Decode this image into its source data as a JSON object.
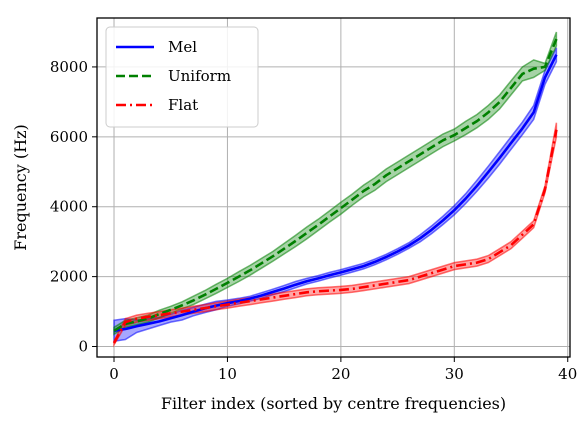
{
  "chart_data": {
    "type": "line",
    "xlabel": "Filter index (sorted by centre frequencies)",
    "ylabel": "Frequency (Hz)",
    "xlim": [
      -1.5,
      40.2
    ],
    "ylim": [
      -300,
      9400
    ],
    "xticks": [
      0,
      10,
      20,
      30,
      40
    ],
    "yticks": [
      0,
      2000,
      4000,
      6000,
      8000
    ],
    "grid": true,
    "legend_position": "top-left",
    "x": [
      0,
      1,
      2,
      3,
      4,
      5,
      6,
      7,
      8,
      9,
      10,
      11,
      12,
      13,
      14,
      15,
      16,
      17,
      18,
      19,
      20,
      21,
      22,
      23,
      24,
      25,
      26,
      27,
      28,
      29,
      30,
      31,
      32,
      33,
      34,
      35,
      36,
      37,
      38,
      39
    ],
    "series": [
      {
        "name": "Mel",
        "color": "#0000ff",
        "style": "solid",
        "mean": [
          450,
          500,
          580,
          650,
          720,
          810,
          900,
          1000,
          1090,
          1170,
          1240,
          1300,
          1370,
          1460,
          1560,
          1660,
          1770,
          1870,
          1950,
          2040,
          2120,
          2210,
          2300,
          2420,
          2560,
          2720,
          2890,
          3100,
          3340,
          3610,
          3900,
          4230,
          4600,
          4990,
          5400,
          5820,
          6240,
          6700,
          7700,
          8350
        ],
        "lower": [
          150,
          200,
          400,
          500,
          600,
          700,
          760,
          880,
          970,
          1050,
          1150,
          1220,
          1300,
          1380,
          1480,
          1570,
          1680,
          1790,
          1870,
          1960,
          2040,
          2130,
          2220,
          2340,
          2480,
          2640,
          2810,
          3000,
          3230,
          3490,
          3770,
          4090,
          4440,
          4820,
          5220,
          5640,
          6060,
          6500,
          7500,
          8150
        ],
        "upper": [
          750,
          800,
          760,
          800,
          840,
          920,
          1040,
          1120,
          1210,
          1290,
          1330,
          1380,
          1440,
          1540,
          1640,
          1750,
          1860,
          1950,
          2030,
          2120,
          2200,
          2290,
          2380,
          2500,
          2640,
          2800,
          2970,
          3200,
          3450,
          3730,
          4030,
          4370,
          4760,
          5160,
          5580,
          6000,
          6420,
          6900,
          7900,
          8550
        ]
      },
      {
        "name": "Uniform",
        "color": "#008000",
        "style": "dashed",
        "mean": [
          450,
          650,
          720,
          800,
          930,
          1050,
          1180,
          1320,
          1480,
          1650,
          1820,
          2000,
          2180,
          2380,
          2580,
          2800,
          3020,
          3250,
          3480,
          3720,
          3960,
          4200,
          4450,
          4650,
          4900,
          5100,
          5300,
          5500,
          5700,
          5900,
          6050,
          6250,
          6450,
          6700,
          7000,
          7400,
          7800,
          7950,
          8000,
          8800
        ],
        "lower": [
          350,
          550,
          620,
          700,
          820,
          950,
          1080,
          1200,
          1360,
          1520,
          1690,
          1860,
          2040,
          2240,
          2440,
          2650,
          2860,
          3080,
          3320,
          3560,
          3790,
          4040,
          4280,
          4470,
          4720,
          4920,
          5120,
          5320,
          5520,
          5720,
          5880,
          6060,
          6260,
          6500,
          6800,
          7200,
          7600,
          7700,
          7900,
          8600
        ],
        "upper": [
          550,
          750,
          820,
          900,
          1040,
          1150,
          1280,
          1440,
          1600,
          1780,
          1950,
          2140,
          2320,
          2520,
          2720,
          2950,
          3180,
          3420,
          3640,
          3880,
          4130,
          4360,
          4620,
          4830,
          5080,
          5280,
          5480,
          5680,
          5880,
          6080,
          6220,
          6440,
          6640,
          6900,
          7200,
          7600,
          8000,
          8200,
          8100,
          9000
        ]
      },
      {
        "name": "Flat",
        "color": "#ff0000",
        "style": "dashdot",
        "mean": [
          100,
          700,
          800,
          850,
          900,
          950,
          1000,
          1050,
          1100,
          1150,
          1200,
          1250,
          1300,
          1350,
          1400,
          1450,
          1500,
          1550,
          1580,
          1600,
          1620,
          1650,
          1700,
          1750,
          1800,
          1850,
          1900,
          2000,
          2100,
          2200,
          2300,
          2350,
          2400,
          2500,
          2700,
          2900,
          3200,
          3500,
          4500,
          6200
        ],
        "lower": [
          50,
          600,
          700,
          750,
          800,
          850,
          900,
          950,
          1000,
          1050,
          1100,
          1150,
          1200,
          1250,
          1300,
          1350,
          1400,
          1450,
          1480,
          1500,
          1520,
          1550,
          1600,
          1650,
          1700,
          1750,
          1800,
          1900,
          2000,
          2100,
          2200,
          2250,
          2300,
          2400,
          2600,
          2800,
          3100,
          3400,
          4400,
          6000
        ],
        "upper": [
          150,
          800,
          900,
          950,
          1000,
          1050,
          1100,
          1150,
          1200,
          1250,
          1300,
          1350,
          1400,
          1450,
          1500,
          1550,
          1600,
          1650,
          1680,
          1700,
          1720,
          1750,
          1800,
          1850,
          1900,
          1950,
          2000,
          2100,
          2200,
          2300,
          2400,
          2450,
          2500,
          2600,
          2800,
          3000,
          3300,
          3600,
          4600,
          6400
        ]
      }
    ]
  }
}
